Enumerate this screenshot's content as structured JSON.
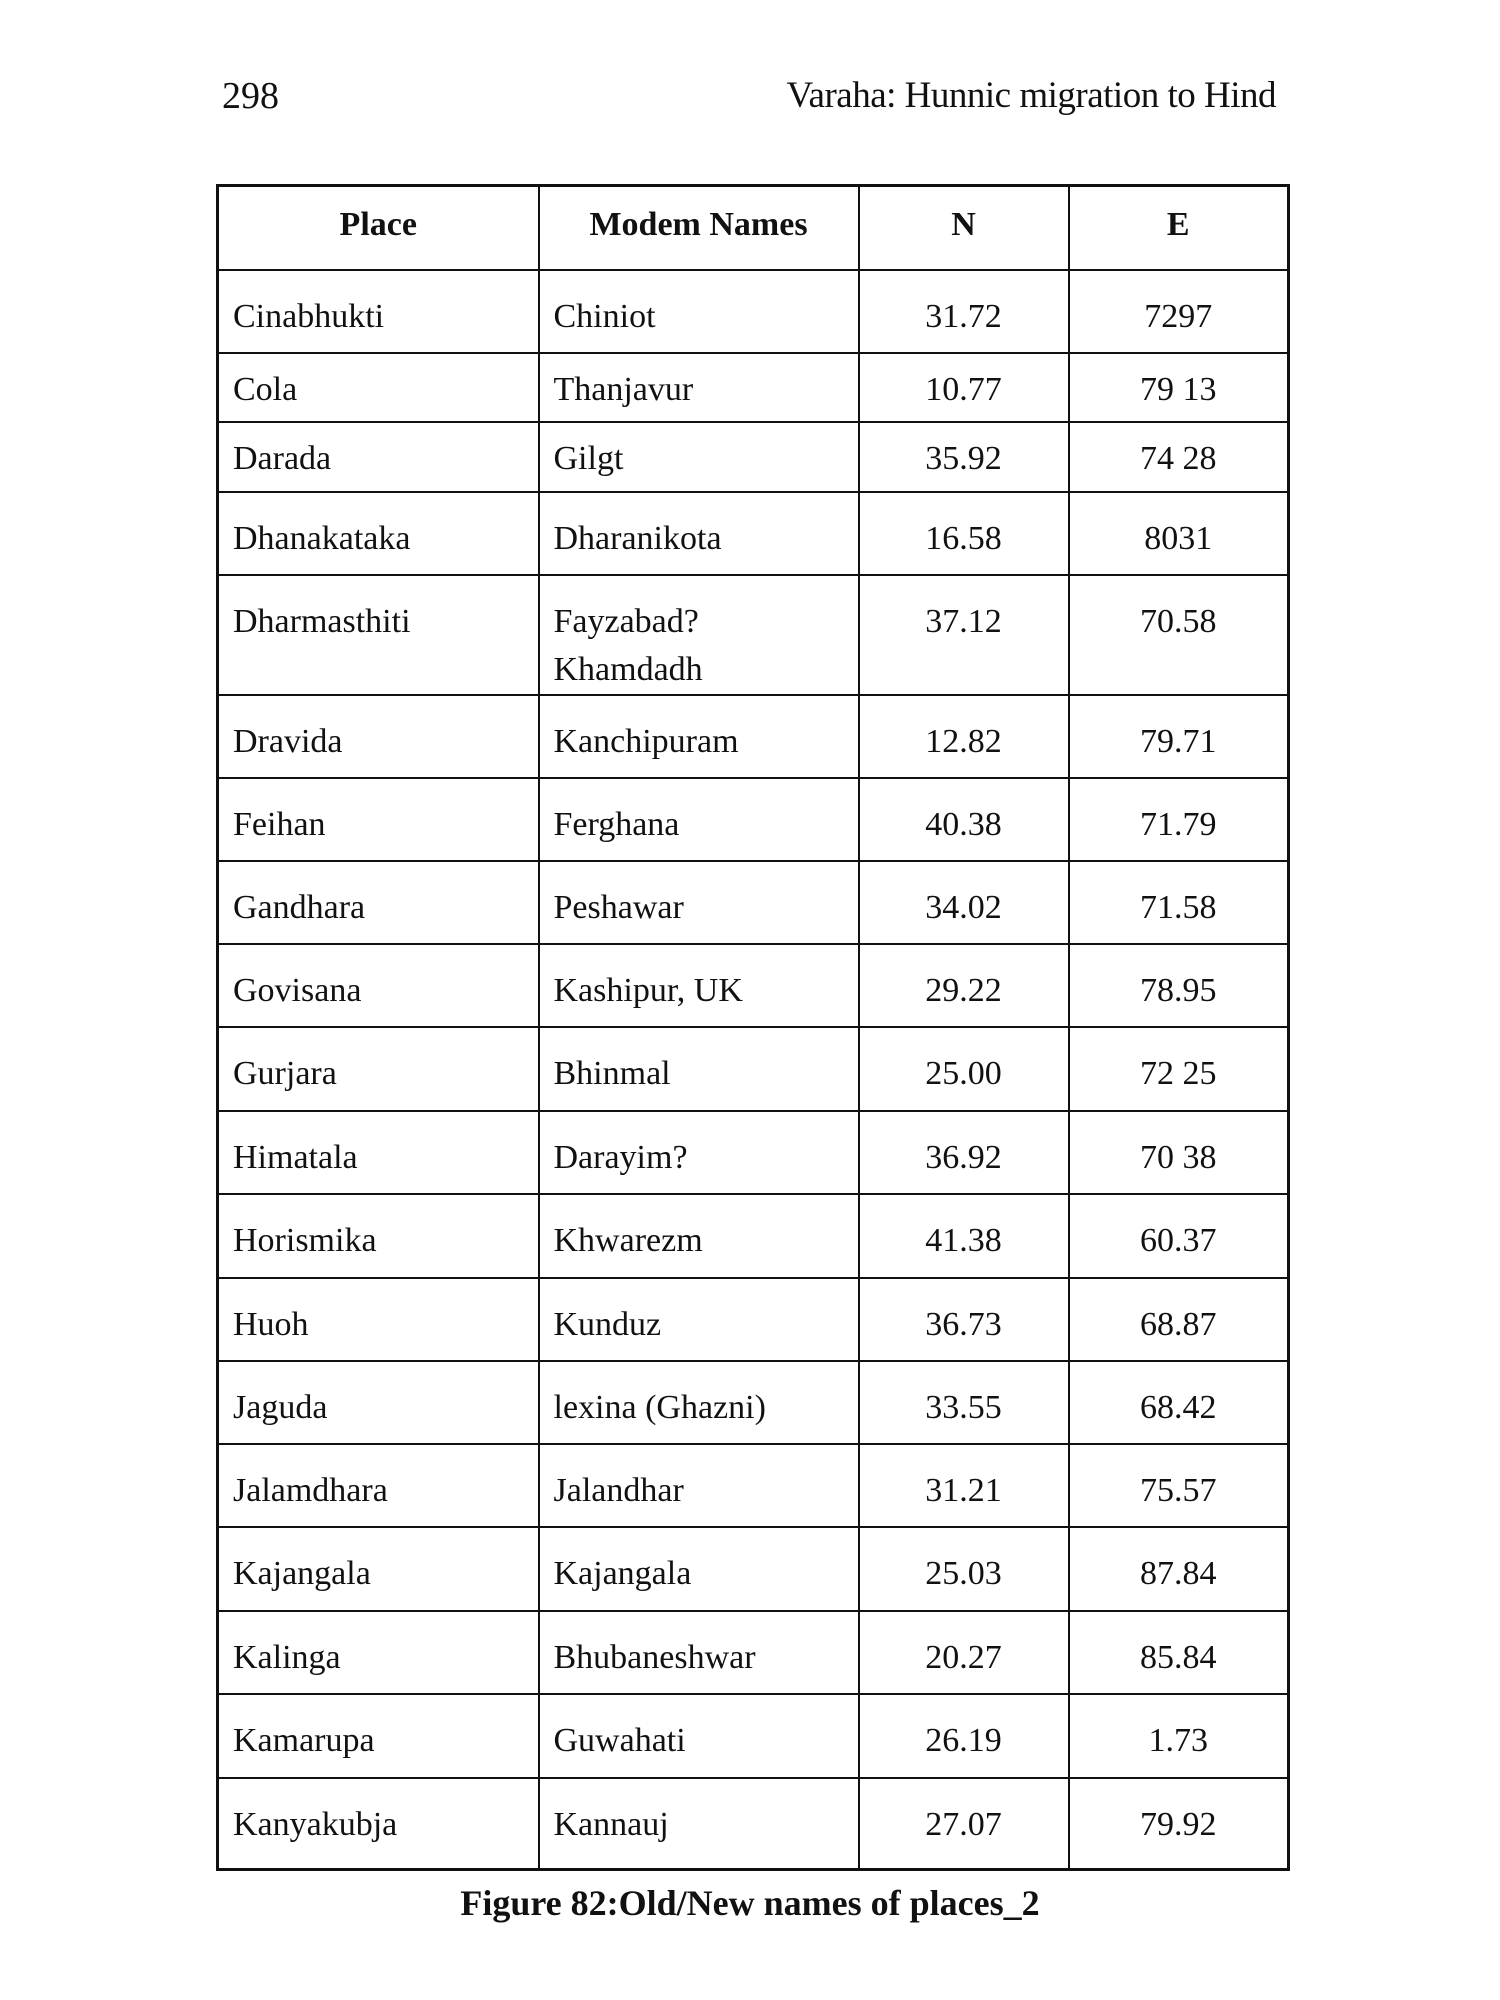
{
  "header": {
    "page_number": "298",
    "running_title": "Varaha: Hunnic migration to Hind"
  },
  "table": {
    "columns": [
      "Place",
      "Modem Names",
      "N",
      "E"
    ],
    "rows": [
      [
        "Cinabhukti",
        "Chiniot",
        "31.72",
        "7297"
      ],
      [
        "Cola",
        "Thanjavur",
        "10.77",
        "79 13"
      ],
      [
        "Darada",
        "Gilgt",
        "35.92",
        "74 28"
      ],
      [
        "Dhanakataka",
        "Dharanikota",
        "16.58",
        "8031"
      ],
      [
        "Dharmasthiti",
        "Fayzabad?\nKhamdadh",
        "37.12",
        "70.58"
      ],
      [
        "Dravida",
        "Kanchipuram",
        "12.82",
        "79.71"
      ],
      [
        "Feihan",
        "Ferghana",
        "40.38",
        "71.79"
      ],
      [
        "Gandhara",
        "Peshawar",
        "34.02",
        "71.58"
      ],
      [
        "Govisana",
        "Kashipur, UK",
        "29.22",
        "78.95"
      ],
      [
        "Gurjara",
        "Bhinmal",
        "25.00",
        "72 25"
      ],
      [
        "Himatala",
        "Darayim?",
        "36.92",
        "70 38"
      ],
      [
        "Horismika",
        "Khwarezm",
        "41.38",
        "60.37"
      ],
      [
        "Huoh",
        "Kunduz",
        "36.73",
        "68.87"
      ],
      [
        "Jaguda",
        "lexina (Ghazni)",
        "33.55",
        "68.42"
      ],
      [
        "Jalamdhara",
        "Jalandhar",
        "31.21",
        "75.57"
      ],
      [
        "Kajangala",
        "Kajangala",
        "25.03",
        "87.84"
      ],
      [
        "Kalinga",
        "Bhubaneshwar",
        "20.27",
        "85.84"
      ],
      [
        "Kamarupa",
        "Guwahati",
        "26.19",
        "1.73"
      ],
      [
        "Kanyakubja",
        "Kannauj",
        "27.07",
        "79.92"
      ]
    ]
  },
  "caption": "Figure 82:Old/New names of places_2"
}
